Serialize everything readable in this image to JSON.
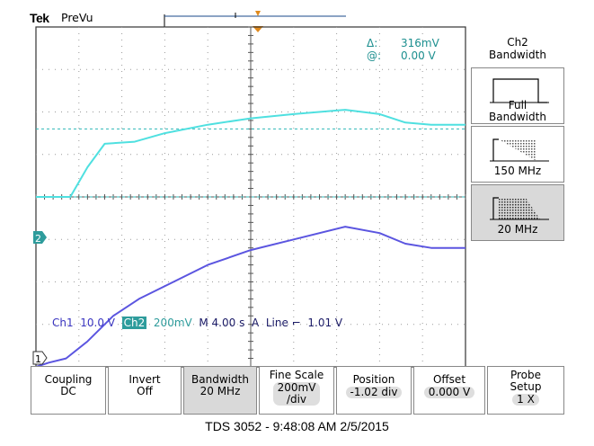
{
  "header": {
    "brand": "Tek",
    "mode": "PreVu"
  },
  "cursor_readout": {
    "delta_label": "Δ:",
    "delta_value": "316mV",
    "at_label": "@:",
    "at_value": "0.00 V"
  },
  "side_menu": {
    "title_line1": "Ch2",
    "title_line2": "Bandwidth",
    "options": [
      {
        "line1": "Full",
        "line2": "Bandwidth",
        "icon": "full-bandwidth-icon",
        "selected": false
      },
      {
        "line1": "150 MHz",
        "line2": "",
        "icon": "150mhz-filter-icon",
        "selected": false
      },
      {
        "line1": "20 MHz",
        "line2": "",
        "icon": "20mhz-filter-icon",
        "selected": true
      }
    ]
  },
  "channel_markers": {
    "ch1": "1",
    "ch2": "2"
  },
  "status_bar": {
    "ch1_label": "Ch1",
    "ch1_scale": "10.0 V",
    "ch2_label": "Ch2",
    "ch2_scale": "200mV",
    "timebase": "M 4.00 s",
    "trigger_source": "A",
    "trigger_type": "Line",
    "trigger_slope_icon": "falling-edge-icon",
    "trigger_level": "1.01 V"
  },
  "bottom_menu": [
    {
      "title": "Coupling",
      "value": "DC"
    },
    {
      "title": "Invert",
      "value": "Off"
    },
    {
      "title": "Bandwidth",
      "value": "20 MHz",
      "selected": true
    },
    {
      "title": "Fine Scale",
      "value": "200mV",
      "value2": "/div"
    },
    {
      "title": "Position",
      "value": "-1.02 div"
    },
    {
      "title": "Offset",
      "value": "0.000 V"
    },
    {
      "title": "Probe",
      "title2": "Setup",
      "value": "1 X"
    }
  ],
  "footer": "TDS 3052 - 9:48:08 AM   2/5/2015",
  "colors": {
    "ch1": "#5b55e0",
    "ch2": "#4fe0e0",
    "ch2_label": "#2e9c9c",
    "grid": "#9a9a9a",
    "trigger": "#e08a1e"
  },
  "chart_data": {
    "type": "line",
    "x_divisions": 10,
    "y_divisions": 8,
    "x_unit": "s/div",
    "series": [
      {
        "name": "Ch1",
        "values_div": [
          [
            0,
            0.0
          ],
          [
            0.3,
            0.1
          ],
          [
            0.7,
            0.2
          ],
          [
            1.2,
            0.6
          ],
          [
            1.8,
            1.2
          ],
          [
            2.4,
            1.6
          ],
          [
            3.2,
            2.0
          ],
          [
            4.0,
            2.4
          ],
          [
            5.0,
            2.75
          ],
          [
            6.0,
            3.0
          ],
          [
            7.2,
            3.3
          ],
          [
            8.0,
            3.15
          ],
          [
            8.6,
            2.9
          ],
          [
            9.2,
            2.8
          ],
          [
            10,
            2.8
          ]
        ]
      },
      {
        "name": "Ch2",
        "values_div": [
          [
            0,
            4.0
          ],
          [
            0.8,
            4.0
          ],
          [
            1.2,
            4.7
          ],
          [
            1.6,
            5.25
          ],
          [
            2.3,
            5.3
          ],
          [
            3.0,
            5.5
          ],
          [
            4.0,
            5.7
          ],
          [
            5.0,
            5.85
          ],
          [
            6.0,
            5.95
          ],
          [
            7.2,
            6.05
          ],
          [
            8.0,
            5.95
          ],
          [
            8.6,
            5.75
          ],
          [
            9.2,
            5.7
          ],
          [
            10,
            5.7
          ]
        ]
      }
    ],
    "cursors_div": [
      4.0,
      5.6
    ],
    "ch2_ground_div": 4.0,
    "ch1_ground_div": 0.0
  }
}
